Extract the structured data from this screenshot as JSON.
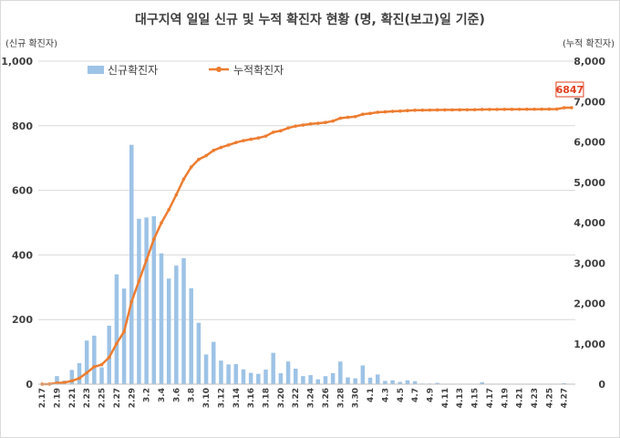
{
  "chart_data": {
    "type": "bar+line",
    "title": "대구지역 일일 신규 및 누적 확진자 현황 (명, 확진(보고)일 기준)",
    "y_left_unit": "(신규 확진자)",
    "y_right_unit": "(누적 확진자)",
    "y_left_range": [
      0,
      1000
    ],
    "y_right_range": [
      0,
      8000
    ],
    "y_left_ticks": [
      "0",
      "200",
      "400",
      "600",
      "800",
      "1,000"
    ],
    "y_right_ticks": [
      "0",
      "1,000",
      "2,000",
      "3,000",
      "4,000",
      "5,000",
      "6,000",
      "7,000",
      "8,000"
    ],
    "grid": true,
    "legend_position": "top-left",
    "x_tick_labels": [
      "2.17",
      "2.19",
      "2.21",
      "2.23",
      "2.25",
      "2.27",
      "2.29",
      "3.2",
      "3.4",
      "3.6",
      "3.8",
      "3.10",
      "3.12",
      "3.14",
      "3.16",
      "3.18",
      "3.20",
      "3.22",
      "3.24",
      "3.26",
      "3.28",
      "3.30",
      "4.1",
      "4.3",
      "4.5",
      "4.7",
      "4.9",
      "4.11",
      "4.13",
      "4.15",
      "4.17",
      "4.19",
      "4.21",
      "4.23",
      "4.25",
      "4.27"
    ],
    "series": [
      {
        "name": "신규확진자",
        "type": "bar",
        "color": "#9dc3e6",
        "values": [
          1,
          1,
          25,
          11,
          44,
          65,
          135,
          150,
          52,
          181,
          340,
          296,
          741,
          512,
          516,
          520,
          405,
          327,
          367,
          390,
          297,
          190,
          92,
          131,
          73,
          61,
          62,
          46,
          35,
          32,
          45,
          97,
          34,
          70,
          48,
          25,
          28,
          15,
          25,
          34,
          70,
          21,
          18,
          58,
          20,
          30,
          10,
          12,
          7,
          12,
          9,
          2,
          2,
          4,
          1,
          1,
          1,
          1,
          1,
          6,
          1,
          1,
          1,
          1,
          1,
          1,
          1,
          1,
          1,
          1,
          3,
          1
        ]
      },
      {
        "name": "누적확진자",
        "type": "line",
        "color": "#ed7d31",
        "values": [
          1,
          2,
          27,
          38,
          82,
          147,
          282,
          432,
          484,
          665,
          1005,
          1301,
          2042,
          2554,
          3070,
          3590,
          3995,
          4322,
          4689,
          5079,
          5376,
          5566,
          5658,
          5789,
          5862,
          5923,
          5985,
          6031,
          6066,
          6098,
          6143,
          6240,
          6275,
          6344,
          6392,
          6417,
          6445,
          6460,
          6482,
          6516,
          6587,
          6608,
          6626,
          6684,
          6704,
          6734,
          6744,
          6756,
          6763,
          6775,
          6784,
          6786,
          6788,
          6792,
          6793,
          6794,
          6795,
          6796,
          6797,
          6803,
          6804,
          6805,
          6806,
          6807,
          6808,
          6809,
          6810,
          6811,
          6812,
          6813,
          6846,
          6847
        ]
      }
    ],
    "annotation": "6847"
  }
}
